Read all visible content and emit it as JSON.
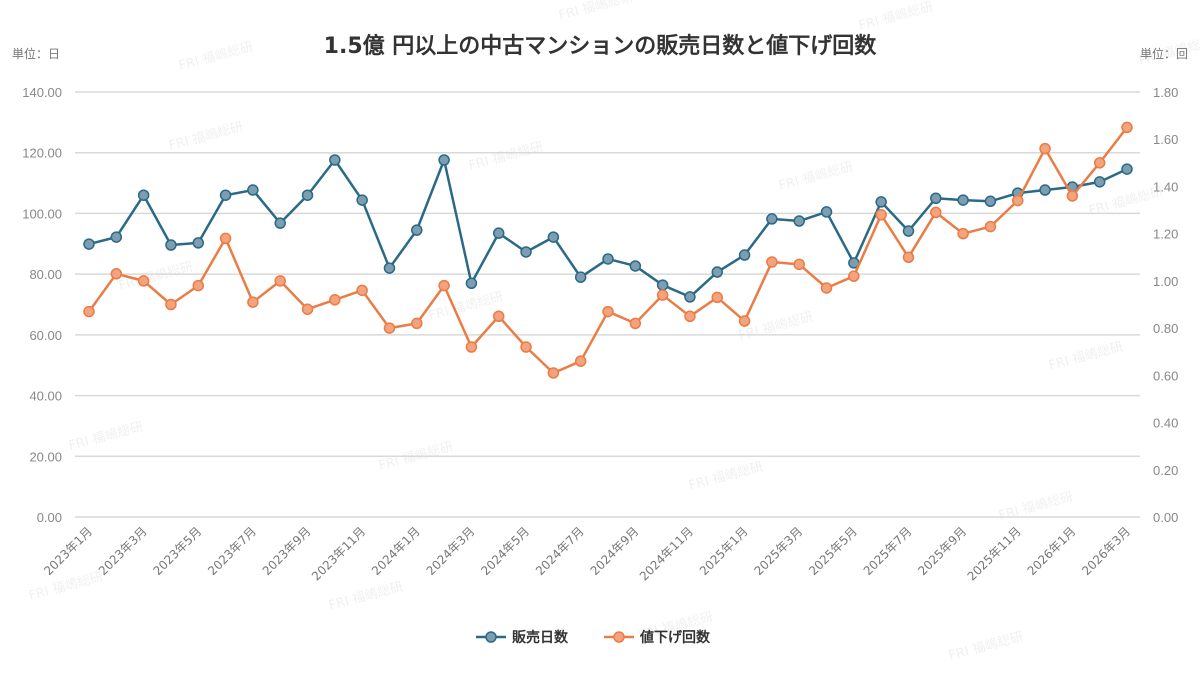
{
  "chart_data": {
    "type": "line",
    "title": "1.5億 円以上の中古マンションの販売日数と値下げ回数",
    "ylabel_left": "単位：日",
    "ylabel_right": "単位：回",
    "ylim_left": [
      0,
      140
    ],
    "ylim_right": [
      0,
      1.8
    ],
    "yticks_left": [
      "0.00",
      "20.00",
      "40.00",
      "60.00",
      "80.00",
      "100.00",
      "120.00",
      "140.00"
    ],
    "yticks_right": [
      "0.00",
      "0.20",
      "0.40",
      "0.60",
      "0.80",
      "1.00",
      "1.20",
      "1.40",
      "1.60",
      "1.80"
    ],
    "grid": true,
    "legend_position": "bottom",
    "x": [
      "2023年1月",
      "2023年2月",
      "2023年3月",
      "2023年4月",
      "2023年5月",
      "2023年6月",
      "2023年7月",
      "2023年8月",
      "2023年9月",
      "2023年10月",
      "2023年11月",
      "2023年12月",
      "2024年1月",
      "2024年2月",
      "2024年3月",
      "2024年4月",
      "2024年5月",
      "2024年6月",
      "2024年7月",
      "2024年8月",
      "2024年9月",
      "2024年10月",
      "2024年11月",
      "2024年12月",
      "2025年1月",
      "2025年2月",
      "2025年3月",
      "2025年4月",
      "2025年5月",
      "2025年6月",
      "2025年7月",
      "2025年8月",
      "2025年9月",
      "2025年10月",
      "2025年11月",
      "2025年12月",
      "2026年1月",
      "2026年2月",
      "2026年3月"
    ],
    "series": [
      {
        "name": "販売日数",
        "axis": "left",
        "color": "#2a6a86",
        "marker_color": "#7d9db0",
        "values": [
          89.9,
          92.2,
          106,
          89.6,
          90.3,
          106,
          107.7,
          96.8,
          106,
          117.6,
          104.4,
          82,
          94.5,
          117.6,
          77,
          93.5,
          87.3,
          92.2,
          79,
          85,
          82.7,
          76.4,
          72.5,
          80.7,
          86.3,
          98.2,
          97.5,
          100.5,
          83.7,
          103.8,
          94.2,
          105,
          104.4,
          104,
          106.7,
          107.7,
          108.7,
          110.4,
          114.6
        ]
      },
      {
        "name": "値下げ回数",
        "axis": "right",
        "color": "#ea7c45",
        "marker_color": "#f3a47e",
        "values": [
          0.87,
          1.03,
          1.0,
          0.9,
          0.98,
          1.18,
          0.91,
          1.0,
          0.88,
          0.92,
          0.96,
          0.8,
          0.82,
          0.98,
          0.72,
          0.85,
          0.72,
          0.61,
          0.66,
          0.87,
          0.82,
          0.94,
          0.85,
          0.93,
          0.83,
          1.08,
          1.07,
          0.97,
          1.02,
          1.28,
          1.1,
          1.29,
          1.2,
          1.23,
          1.34,
          1.56,
          1.36,
          1.5,
          1.65
        ]
      }
    ],
    "watermark": "FRI 福嶋総研"
  }
}
